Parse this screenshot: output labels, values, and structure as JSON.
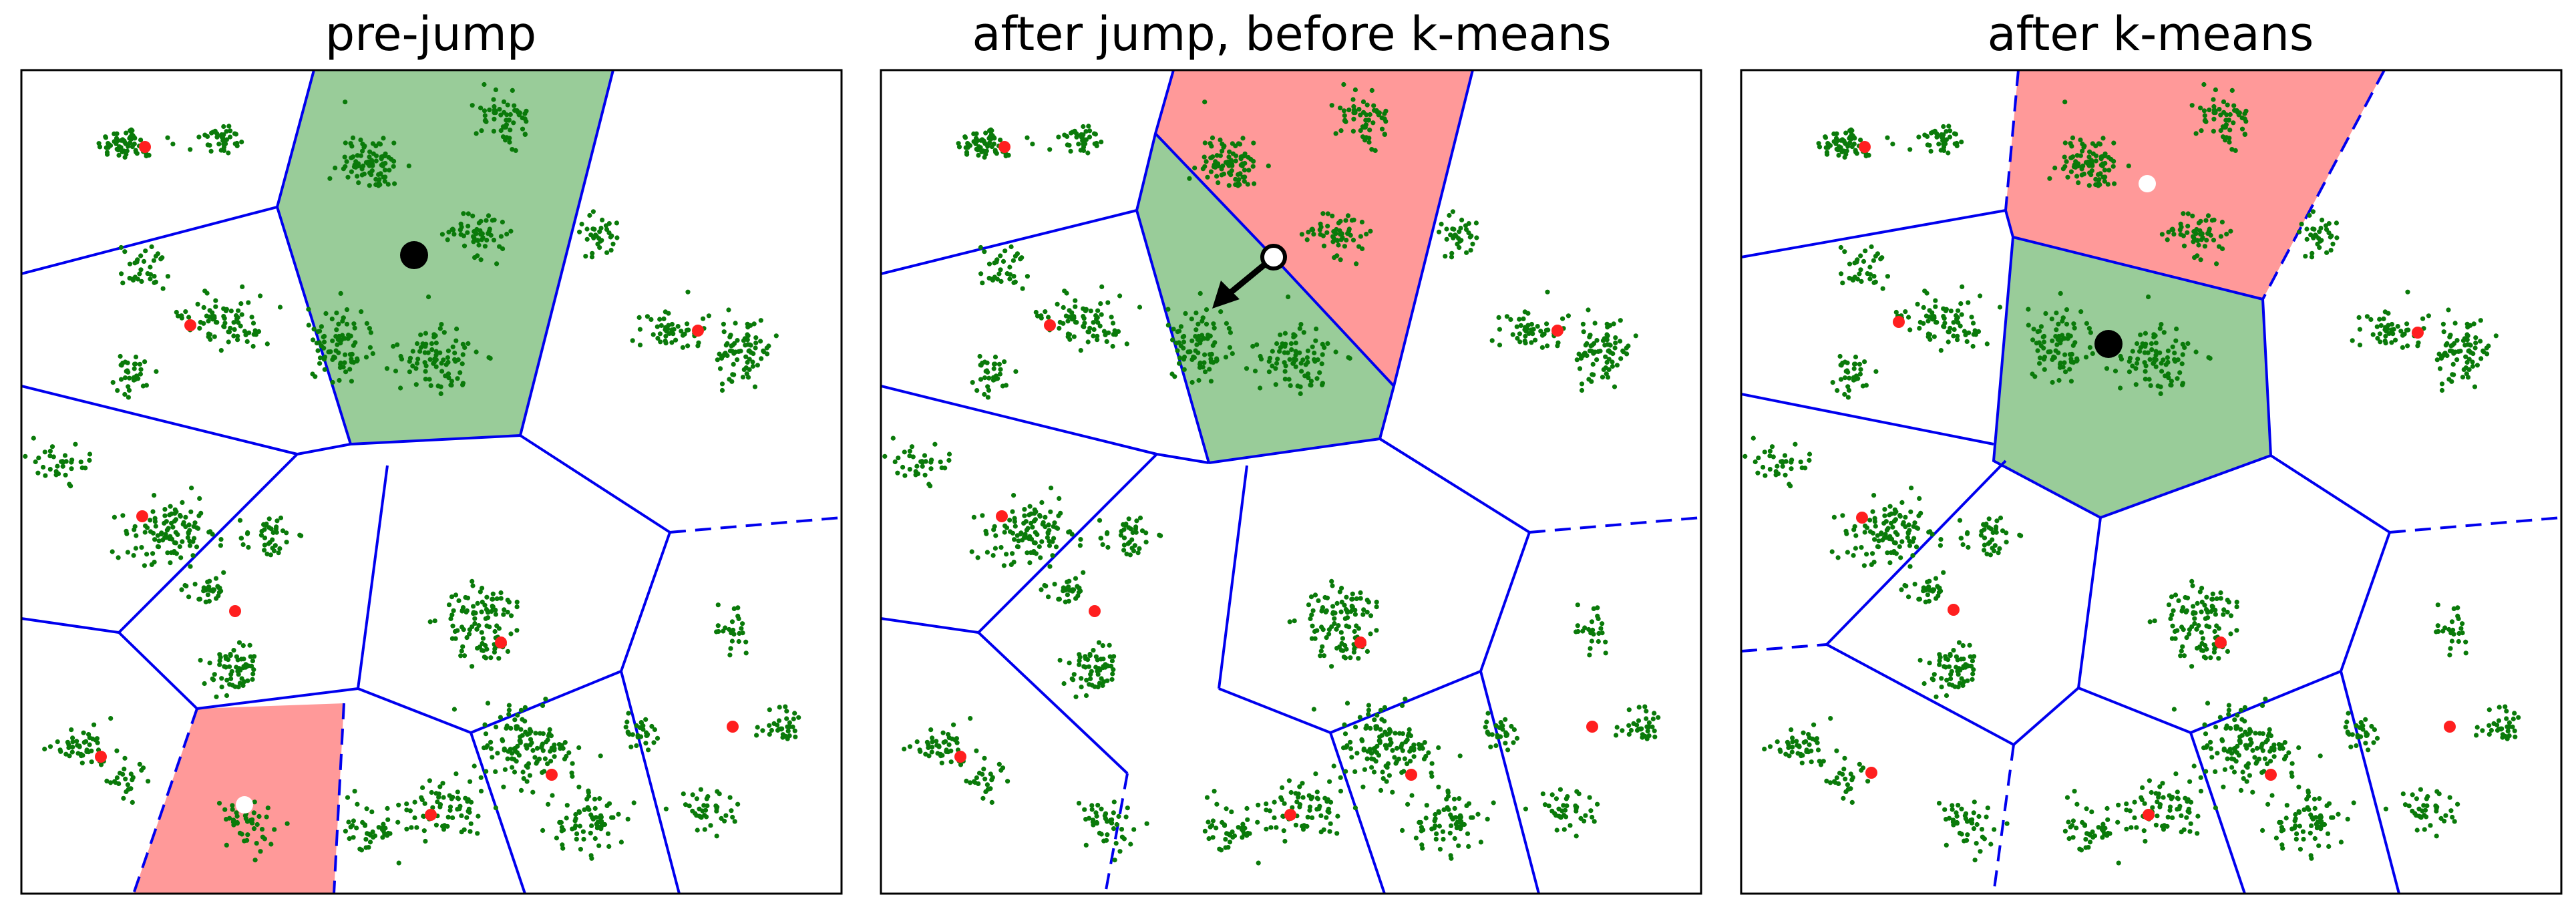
{
  "figure": {
    "panels": [
      {
        "id": "pre-jump",
        "title": "pre-jump"
      },
      {
        "id": "after-jump",
        "title": "after jump, before k-means"
      },
      {
        "id": "after-kmeans",
        "title": "after k-means"
      }
    ]
  },
  "colors": {
    "points": "#0a7a0a",
    "centroid": "#ff1f1f",
    "edges": "#0000ee",
    "region_green": "#99cc99",
    "region_red": "#ff9999",
    "frame": "#000000"
  }
}
